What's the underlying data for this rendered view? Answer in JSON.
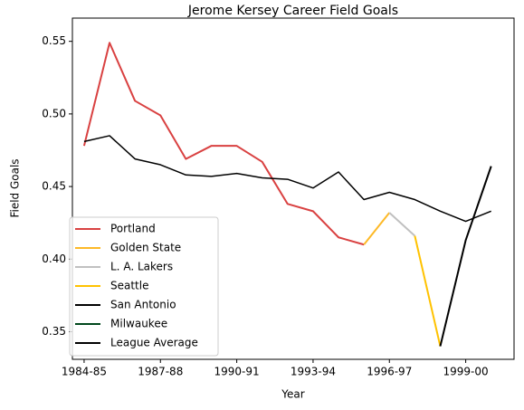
{
  "chart_data": {
    "type": "line",
    "title": "Jerome Kersey Career Field Goals",
    "xlabel": "Year",
    "ylabel": "Field Goals",
    "categories": [
      "1984-85",
      null,
      null,
      "1987-88",
      null,
      null,
      "1990-91",
      null,
      null,
      "1993-94",
      null,
      null,
      "1996-97",
      null,
      null,
      "1999-00",
      null
    ],
    "xlim": [
      -0.46,
      16.9
    ],
    "ylim": [
      0.331,
      0.566
    ],
    "yticks": [
      0.35,
      {
        "value": 0.4,
        "label": "0.40"
      },
      0.45,
      {
        "value": 0.5,
        "label": "0.50"
      },
      0.55
    ],
    "legend": "lower left",
    "series": [
      {
        "name": "Portland",
        "color": "#d94141",
        "width": 2,
        "values": [
          0.478,
          0.549,
          0.509,
          0.499,
          0.469,
          0.478,
          0.478,
          0.467,
          0.438,
          0.433,
          0.415,
          0.41,
          null,
          null,
          null,
          null,
          null
        ]
      },
      {
        "name": "Golden State",
        "color": "#fdb927",
        "width": 2,
        "values": [
          null,
          null,
          null,
          null,
          null,
          null,
          null,
          null,
          null,
          null,
          null,
          0.41,
          0.432,
          null,
          null,
          null,
          null
        ]
      },
      {
        "name": "L. A. Lakers",
        "color": "#c0c0c0",
        "width": 2,
        "values": [
          null,
          null,
          null,
          null,
          null,
          null,
          null,
          null,
          null,
          null,
          null,
          null,
          0.432,
          0.416,
          null,
          null,
          null
        ]
      },
      {
        "name": "Seattle",
        "color": "#ffc200",
        "width": 2,
        "values": [
          null,
          null,
          null,
          null,
          null,
          null,
          null,
          null,
          null,
          null,
          null,
          null,
          null,
          0.416,
          0.34,
          null,
          null
        ]
      },
      {
        "name": "San Antonio",
        "color": "#000000",
        "width": 2,
        "values": [
          null,
          null,
          null,
          null,
          null,
          null,
          null,
          null,
          null,
          null,
          null,
          null,
          null,
          null,
          0.34,
          0.413,
          0.464
        ]
      },
      {
        "name": "Milwaukee",
        "color": "#00471b",
        "width": 2,
        "values": [
          null,
          null,
          null,
          null,
          null,
          null,
          null,
          null,
          null,
          null,
          null,
          null,
          null,
          null,
          null,
          null,
          0.464
        ]
      },
      {
        "name": "League Average",
        "color": "#000000",
        "width": 1.5,
        "values": [
          0.481,
          0.485,
          0.469,
          0.465,
          0.458,
          0.457,
          0.459,
          0.456,
          0.455,
          0.449,
          0.46,
          0.441,
          0.446,
          0.441,
          0.433,
          0.426,
          0.433
        ]
      }
    ]
  }
}
